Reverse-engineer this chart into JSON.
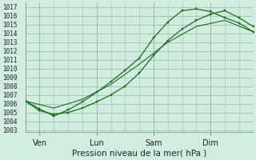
{
  "bg_color": "#d0ede0",
  "grid_color": "#a0bfb0",
  "line_color": "#1a6e1a",
  "ylabel_ticks": [
    1003,
    1004,
    1005,
    1006,
    1007,
    1008,
    1009,
    1010,
    1011,
    1012,
    1013,
    1014,
    1015,
    1016,
    1017
  ],
  "xlabel": "Pression niveau de la mer( hPa )",
  "xtick_labels": [
    "Ven",
    "Lun",
    "Sam",
    "Dim"
  ],
  "xtick_positions": [
    0.5,
    2.5,
    4.5,
    6.5
  ],
  "ylim": [
    1002.8,
    1017.5
  ],
  "xlim": [
    0,
    8
  ],
  "line1_x": [
    0.0,
    0.5,
    1.0,
    1.5,
    2.0,
    2.5,
    3.0,
    3.5,
    4.0,
    4.5,
    5.0,
    5.5,
    6.0,
    6.5,
    7.0,
    7.5,
    8.0
  ],
  "line1_y": [
    1006.3,
    1005.2,
    1004.8,
    1005.0,
    1005.5,
    1006.2,
    1007.0,
    1008.0,
    1009.5,
    1011.5,
    1013.2,
    1014.5,
    1015.5,
    1016.2,
    1016.6,
    1015.8,
    1014.8
  ],
  "line2_x": [
    0.0,
    0.5,
    1.0,
    1.5,
    2.0,
    2.5,
    3.0,
    3.5,
    4.0,
    4.5,
    5.0,
    5.5,
    6.0,
    6.5,
    7.0,
    7.5,
    8.0
  ],
  "line2_y": [
    1006.3,
    1005.4,
    1004.6,
    1005.3,
    1006.2,
    1007.3,
    1008.5,
    1009.8,
    1011.2,
    1013.5,
    1015.3,
    1016.6,
    1016.8,
    1016.5,
    1015.8,
    1015.2,
    1014.2
  ],
  "line3_x": [
    0.0,
    1.0,
    2.0,
    3.0,
    4.0,
    5.0,
    6.0,
    7.0,
    8.0
  ],
  "line3_y": [
    1006.3,
    1005.5,
    1006.5,
    1008.2,
    1010.5,
    1013.0,
    1014.8,
    1015.5,
    1014.2
  ]
}
